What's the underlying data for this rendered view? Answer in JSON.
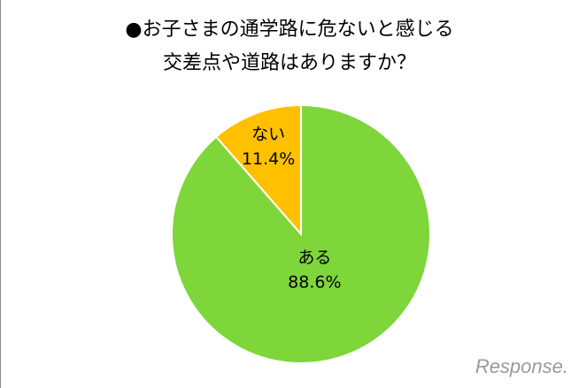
{
  "chart_data": {
    "type": "pie",
    "title": [
      "●お子さまの通学路に危ないと感じる",
      "交差点や道路はありますか？"
    ],
    "categories": [
      "ない",
      "ある"
    ],
    "values": [
      11.4,
      88.6
    ],
    "value_labels": [
      "11.4%",
      "88.6%"
    ],
    "colors": [
      "#ffc000",
      "#7ed63a"
    ]
  },
  "watermark": "Response."
}
